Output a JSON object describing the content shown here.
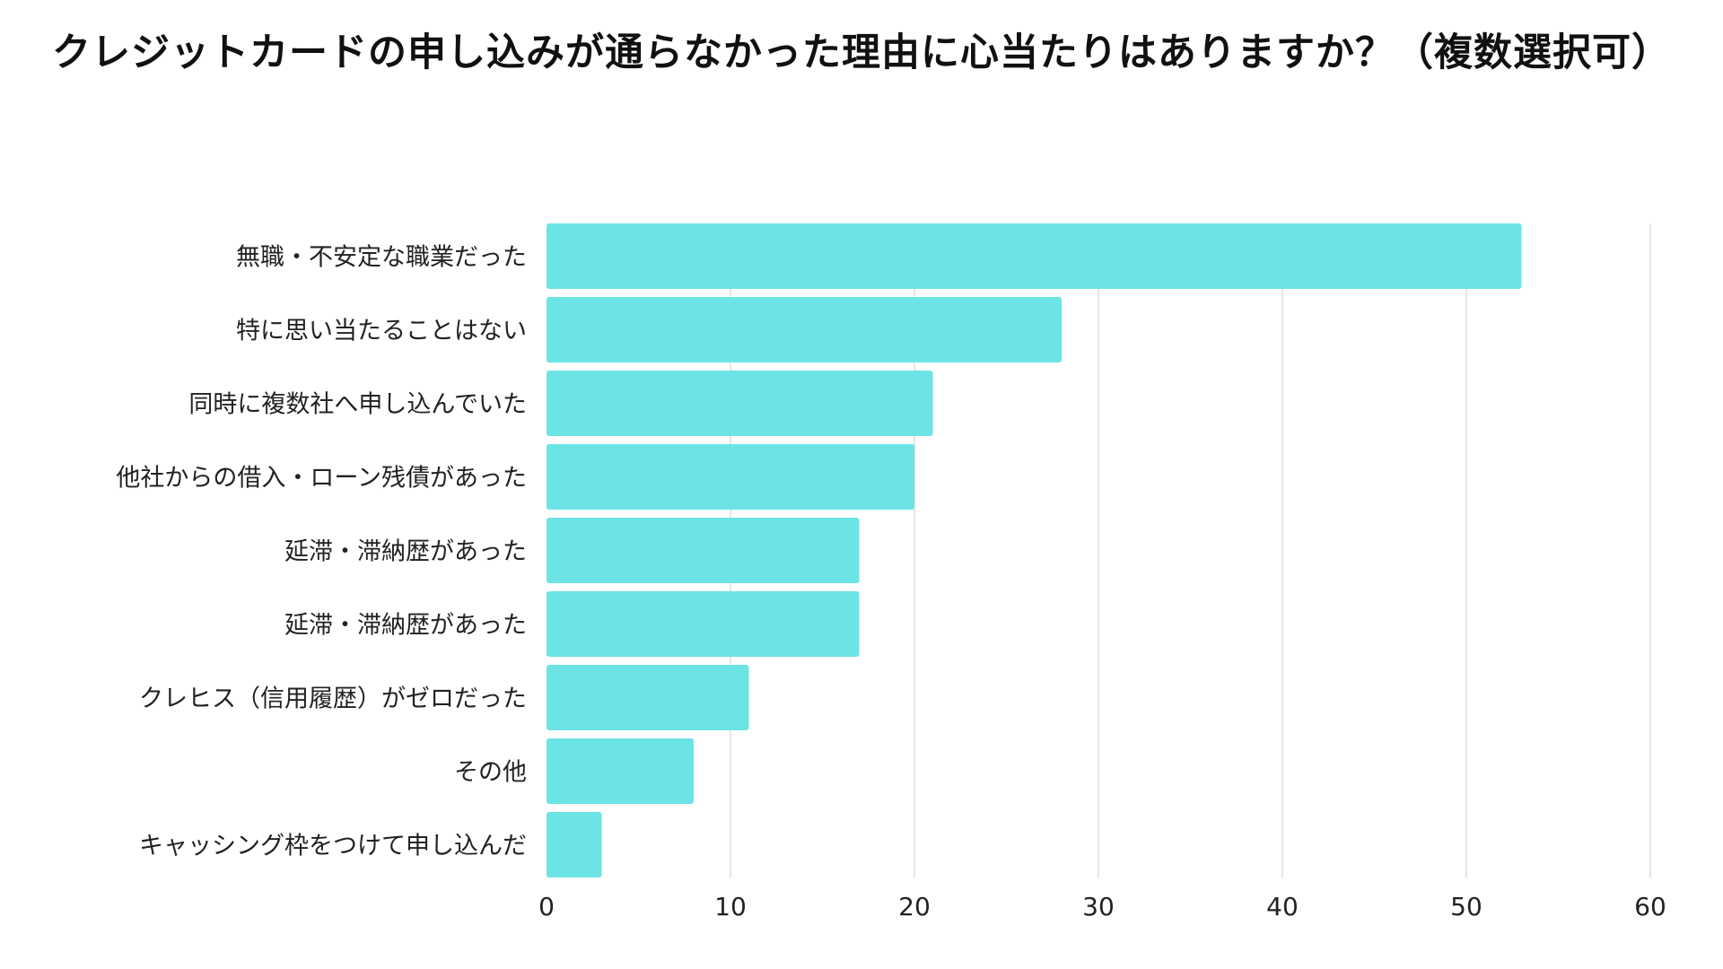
{
  "chart_data": {
    "type": "bar",
    "orientation": "horizontal",
    "title": "クレジットカードの申し込みが通らなかった理由に心当たりはありますか？（複数選択可）",
    "categories": [
      "無職・不安定な職業だった",
      "特に思い当たることはない",
      "同時に複数社へ申し込んでいた",
      "他社からの借入・ローン残債があった",
      "延滞・滞納歴があった",
      "延滞・滞納歴があった",
      "クレヒス（信用履歴）がゼロだった",
      "その他",
      "キャッシング枠をつけて申し込んだ"
    ],
    "values": [
      53,
      28,
      21,
      20,
      17,
      17,
      11,
      8,
      3
    ],
    "xlim": [
      0,
      60
    ],
    "xticks": [
      "0",
      "10",
      "20",
      "30",
      "40",
      "50",
      "60"
    ],
    "xlabel": "",
    "ylabel": "",
    "grid": true,
    "bar_color": "#6ce4e6",
    "grid_color": "#dddddd"
  }
}
